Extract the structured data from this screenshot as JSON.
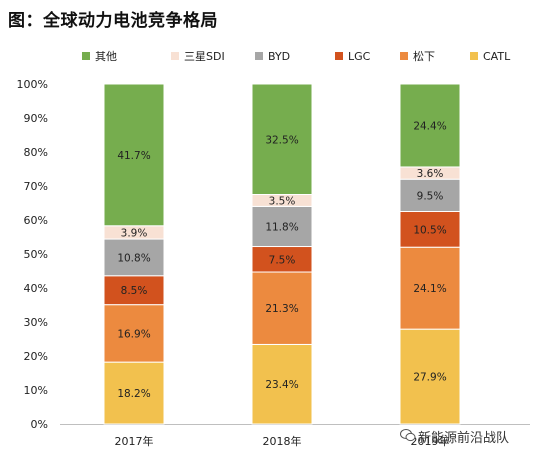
{
  "title": "图：全球动力电池竞争格局",
  "watermark": "新能源前沿战队",
  "chart_data": {
    "type": "bar",
    "stacked": true,
    "categories": [
      "2017年",
      "2018年",
      "2019年"
    ],
    "ylim": [
      0,
      100
    ],
    "y_ticks": [
      "0%",
      "10%",
      "20%",
      "30%",
      "40%",
      "50%",
      "60%",
      "70%",
      "80%",
      "90%",
      "100%"
    ],
    "legend_position": "top",
    "series": [
      {
        "name": "CATL",
        "color": "#F2C14E",
        "values": [
          18.2,
          23.4,
          27.9
        ],
        "labels": [
          "18.2%",
          "23.4%",
          "27.9%"
        ]
      },
      {
        "name": "松下",
        "color": "#EC8A3F",
        "values": [
          16.9,
          21.3,
          24.1
        ],
        "labels": [
          "16.9%",
          "21.3%",
          "24.1%"
        ]
      },
      {
        "name": "LGC",
        "color": "#D2521E",
        "values": [
          8.5,
          7.5,
          10.5
        ],
        "labels": [
          "8.5%",
          "7.5%",
          "10.5%"
        ]
      },
      {
        "name": "BYD",
        "color": "#A6A6A6",
        "values": [
          10.8,
          11.8,
          9.5
        ],
        "labels": [
          "10.8%",
          "11.8%",
          "9.5%"
        ]
      },
      {
        "name": "三星SDI",
        "color": "#F8E1D4",
        "values": [
          3.9,
          3.5,
          3.6
        ],
        "labels": [
          "3.9%",
          "3.5%",
          "3.6%"
        ]
      },
      {
        "name": "其他",
        "color": "#76AD4E",
        "values": [
          41.7,
          32.5,
          24.4
        ],
        "labels": [
          "41.7%",
          "32.5%",
          "24.4%"
        ]
      }
    ],
    "legend_order": [
      "其他",
      "三星SDI",
      "BYD",
      "LGC",
      "松下",
      "CATL"
    ]
  }
}
